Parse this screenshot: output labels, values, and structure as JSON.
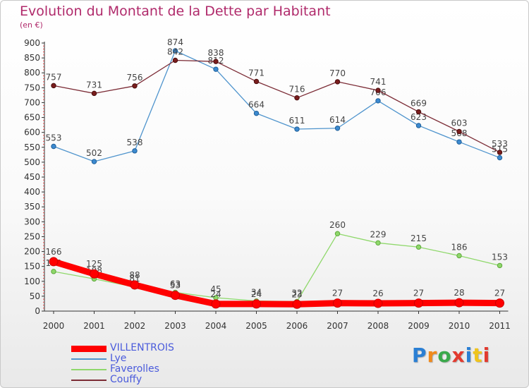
{
  "chart_data": {
    "type": "line",
    "title": "Evolution du Montant de la Dette par Habitant",
    "subtitle": "(en €)",
    "x": [
      "2000",
      "2001",
      "2002",
      "2003",
      "2004",
      "2005",
      "2006",
      "2007",
      "2008",
      "2009",
      "2010",
      "2011"
    ],
    "ylim": [
      0,
      900
    ],
    "yticks": [
      0,
      50,
      100,
      150,
      200,
      250,
      300,
      350,
      400,
      450,
      500,
      550,
      600,
      650,
      700,
      750,
      800,
      850,
      900
    ],
    "grid": false,
    "legend_position": "bottom-left",
    "series": [
      {
        "name": "VILLENTROIS",
        "color": "#ff0000",
        "values": [
          166,
          125,
          88,
          53,
          24,
          24,
          23,
          27,
          26,
          27,
          28,
          27
        ]
      },
      {
        "name": "Lye",
        "color": "#4f94cd",
        "values": [
          553,
          502,
          538,
          874,
          812,
          664,
          611,
          614,
          706,
          623,
          568,
          515
        ]
      },
      {
        "name": "Faverolles",
        "color": "#8fd86b",
        "values": [
          133,
          108,
          81,
          63,
          45,
          34,
          32,
          260,
          229,
          215,
          186,
          153
        ]
      },
      {
        "name": "Couffy",
        "color": "#7b2b35",
        "values": [
          757,
          731,
          756,
          842,
          838,
          771,
          716,
          770,
          741,
          669,
          603,
          533
        ]
      }
    ]
  },
  "brand": {
    "text": "Proxiti",
    "colors": [
      "#2a7fd4",
      "#f08a1c",
      "#3aa94b",
      "#e23a2f",
      "#2a7fd4",
      "#f0c41c",
      "#e23a2f"
    ]
  }
}
